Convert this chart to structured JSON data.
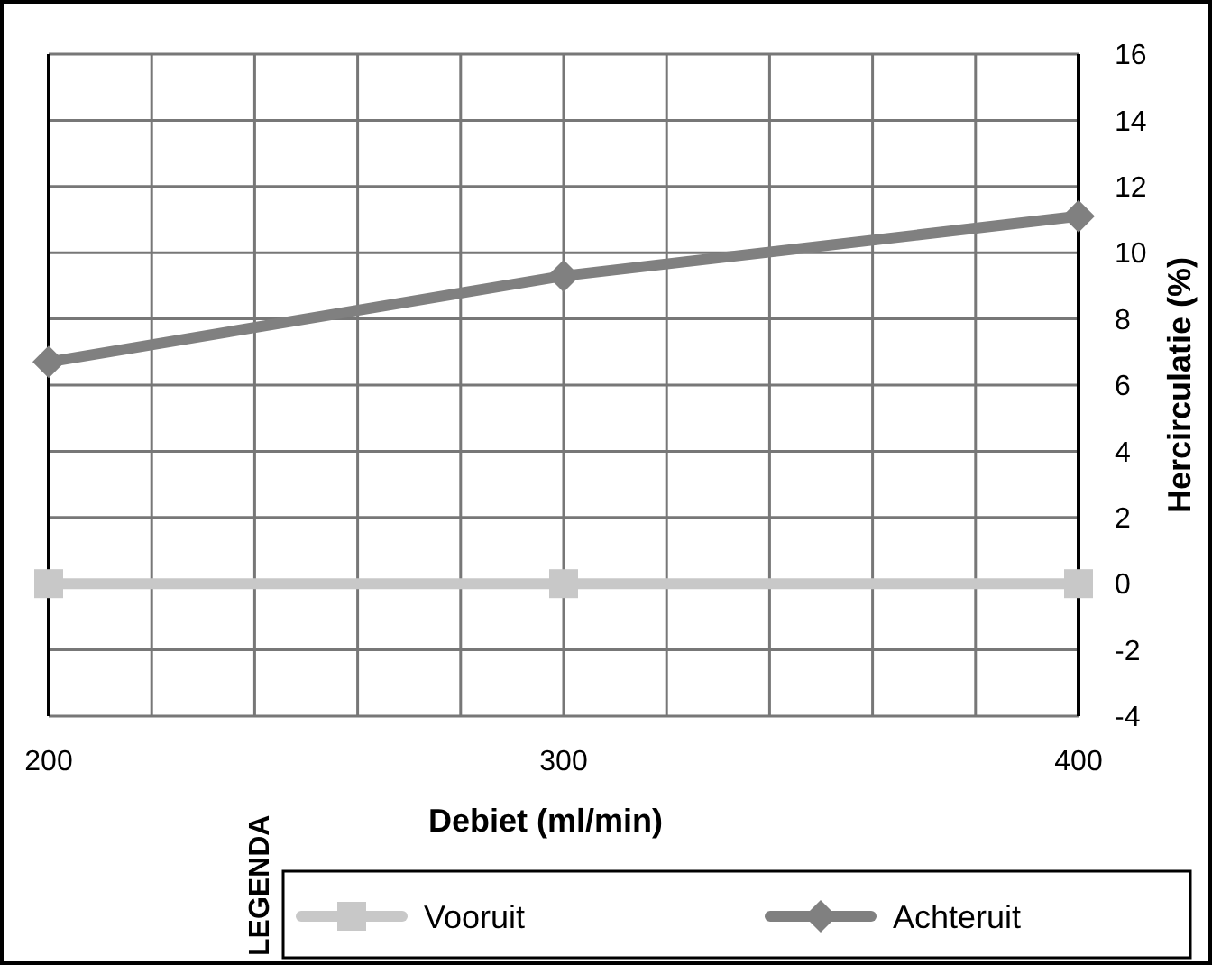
{
  "chart_data": {
    "type": "line",
    "xlabel": "Debiet (ml/min)",
    "ylabel": "Hercirculatie (%)",
    "legend_title": "LEGENDA",
    "x": [
      200,
      300,
      400
    ],
    "series": [
      {
        "name": "Vooruit",
        "color": "#c8c8c8",
        "values": [
          0,
          0,
          0
        ],
        "marker": "square"
      },
      {
        "name": "Achteruit",
        "color": "#808080",
        "values": [
          6.7,
          9.3,
          11.1
        ],
        "marker": "diamond"
      }
    ],
    "xlim": [
      200,
      400
    ],
    "xticks": [
      200,
      {
        "value": 220,
        "label": null
      },
      {
        "value": 240,
        "label": null
      },
      {
        "value": 260,
        "label": null
      },
      {
        "value": 280,
        "label": null
      },
      300,
      {
        "value": 320,
        "label": null
      },
      {
        "value": 340,
        "label": null
      },
      {
        "value": 360,
        "label": null
      },
      {
        "value": 380,
        "label": null
      },
      400
    ],
    "ylim": [
      -4,
      16
    ],
    "yticks": [
      -4,
      -2,
      0,
      2,
      4,
      6,
      8,
      10,
      12,
      14,
      16
    ],
    "grid": true,
    "legend": "bottom",
    "line_style": "solid"
  }
}
